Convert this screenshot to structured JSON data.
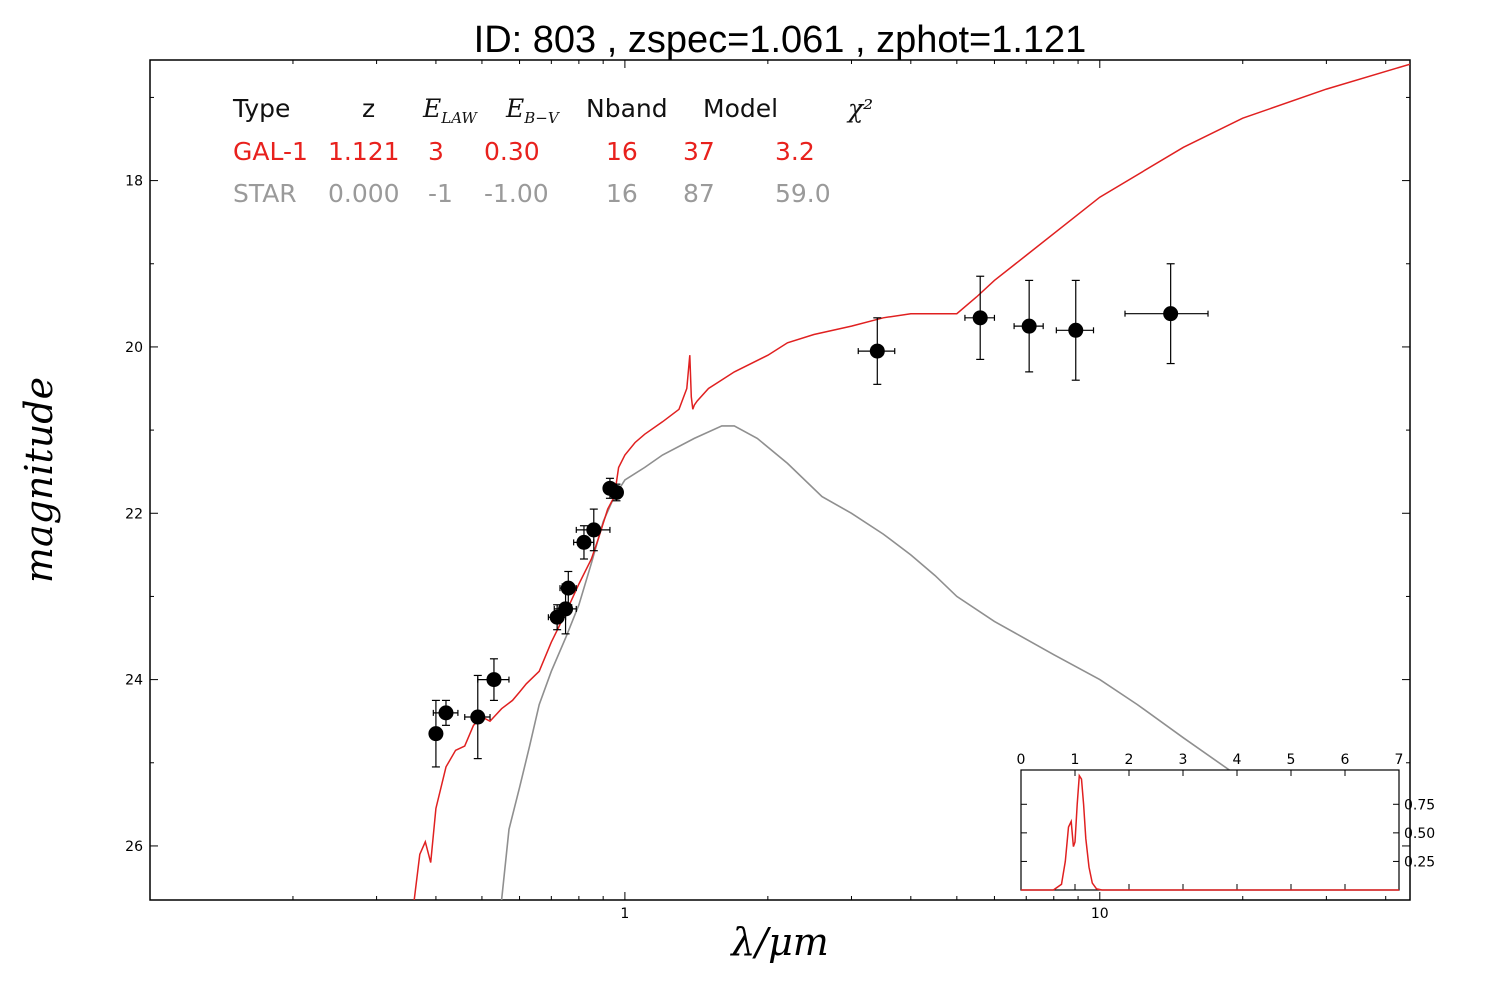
{
  "chart_data": {
    "type": "scatter",
    "title": "ID:  803   , zspec=1.061 , zphot=1.121",
    "xlabel": "λ/μm",
    "ylabel": "magnitude",
    "xscale": "log",
    "xlim": [
      0.1,
      45
    ],
    "ylim": [
      26.65,
      16.55
    ],
    "x_ticks": [
      {
        "value": 1,
        "label": "1"
      },
      {
        "value": 10,
        "label": "10"
      }
    ],
    "y_ticks": [
      {
        "value": 18,
        "label": "18"
      },
      {
        "value": 20,
        "label": "20"
      },
      {
        "value": 22,
        "label": "22"
      },
      {
        "value": 24,
        "label": "24"
      },
      {
        "value": 26,
        "label": "26"
      }
    ],
    "grid": false,
    "legend_table": {
      "headers": [
        "Type",
        "z",
        "E_LAW",
        "E_B-V",
        "Nband",
        "Model",
        "χ²"
      ],
      "rows": [
        {
          "cells": [
            "GAL-1",
            "1.121",
            "3",
            "0.30",
            "16",
            "37",
            "3.2"
          ],
          "color": "#e8211d"
        },
        {
          "cells": [
            "STAR",
            "0.000",
            "-1",
            "-1.00",
            "16",
            "87",
            "59.0"
          ],
          "color": "#9a9a9a"
        }
      ]
    },
    "series": [
      {
        "kind": "model",
        "color": "#e02020",
        "x": [
          0.36,
          0.37,
          0.38,
          0.39,
          0.4,
          0.42,
          0.44,
          0.46,
          0.48,
          0.5,
          0.52,
          0.55,
          0.58,
          0.6,
          0.62,
          0.66,
          0.7,
          0.75,
          0.8,
          0.85,
          0.88,
          0.92,
          0.95,
          0.97,
          1.0,
          1.05,
          1.1,
          1.2,
          1.3,
          1.35,
          1.37,
          1.38,
          1.39,
          1.4,
          1.42,
          1.5,
          1.7,
          2.0,
          2.2,
          2.5,
          3.0,
          3.5,
          4.0,
          5.0,
          5.5,
          6.0,
          7.0,
          10.0,
          15.0,
          20.0,
          30.0,
          45.0
        ],
        "y": [
          26.65,
          26.1,
          25.95,
          26.2,
          25.55,
          25.05,
          24.85,
          24.8,
          24.55,
          24.45,
          24.5,
          24.35,
          24.25,
          24.15,
          24.05,
          23.9,
          23.55,
          23.2,
          22.85,
          22.55,
          22.3,
          21.95,
          21.8,
          21.45,
          21.3,
          21.15,
          21.05,
          20.9,
          20.75,
          20.5,
          20.1,
          20.6,
          20.75,
          20.7,
          20.65,
          20.5,
          20.3,
          20.1,
          19.95,
          19.85,
          19.75,
          19.65,
          19.6,
          19.6,
          19.4,
          19.2,
          18.9,
          18.2,
          17.6,
          17.25,
          16.9,
          16.6
        ]
      },
      {
        "kind": "star-model",
        "color": "#8f8f8f",
        "x": [
          0.55,
          0.57,
          0.6,
          0.63,
          0.66,
          0.7,
          0.75,
          0.8,
          0.85,
          0.9,
          0.95,
          1.0,
          1.1,
          1.2,
          1.4,
          1.6,
          1.7,
          1.9,
          2.2,
          2.6,
          3.0,
          3.5,
          4.0,
          4.5,
          5.0,
          6.0,
          8.0,
          10.0,
          12.0,
          15.0,
          20.0
        ],
        "y": [
          26.65,
          25.8,
          25.3,
          24.8,
          24.3,
          23.9,
          23.5,
          23.1,
          22.6,
          22.1,
          21.8,
          21.6,
          21.45,
          21.3,
          21.1,
          20.95,
          20.95,
          21.1,
          21.4,
          21.8,
          22.0,
          22.25,
          22.5,
          22.75,
          23.0,
          23.3,
          23.7,
          24.0,
          24.3,
          24.7,
          25.2
        ]
      }
    ],
    "points": [
      {
        "x": 0.4,
        "y": 24.65,
        "xerr": 0.01,
        "yerr": 0.4
      },
      {
        "x": 0.42,
        "y": 24.4,
        "xerr": 0.025,
        "yerr": 0.15
      },
      {
        "x": 0.49,
        "y": 24.45,
        "xerr": 0.03,
        "yerr": 0.5
      },
      {
        "x": 0.53,
        "y": 24.0,
        "xerr": 0.04,
        "yerr": 0.25
      },
      {
        "x": 0.72,
        "y": 23.25,
        "xerr": 0.03,
        "yerr": 0.15
      },
      {
        "x": 0.75,
        "y": 23.15,
        "xerr": 0.04,
        "yerr": 0.3
      },
      {
        "x": 0.76,
        "y": 22.9,
        "xerr": 0.03,
        "yerr": 0.2
      },
      {
        "x": 0.82,
        "y": 22.35,
        "xerr": 0.04,
        "yerr": 0.2
      },
      {
        "x": 0.86,
        "y": 22.2,
        "xerr": 0.07,
        "yerr": 0.25
      },
      {
        "x": 0.93,
        "y": 21.7,
        "xerr": 0.02,
        "yerr": 0.12
      },
      {
        "x": 0.96,
        "y": 21.75,
        "xerr": 0.02,
        "yerr": 0.1
      },
      {
        "x": 3.4,
        "y": 20.05,
        "xerr": 0.3,
        "yerr": 0.4
      },
      {
        "x": 5.6,
        "y": 19.65,
        "xerr": 0.4,
        "yerr": 0.5
      },
      {
        "x": 7.1,
        "y": 19.75,
        "xerr": 0.5,
        "yerr": 0.55
      },
      {
        "x": 8.9,
        "y": 19.8,
        "xerr": 0.8,
        "yerr": 0.6
      },
      {
        "x": 14.1,
        "y": 19.6,
        "xerr": 2.8,
        "yerr": 0.6
      }
    ],
    "inset": {
      "type": "line",
      "xlim": [
        0,
        7
      ],
      "ylim": [
        0,
        1.05
      ],
      "x_ticks": [
        "0",
        "1",
        "2",
        "3",
        "4",
        "5",
        "6",
        "7"
      ],
      "y_ticks": [
        {
          "value": 0.25,
          "label": "0.25"
        },
        {
          "value": 0.5,
          "label": "0.50"
        },
        {
          "value": 0.75,
          "label": "0.75"
        }
      ],
      "color": "#e02020",
      "x": [
        0.0,
        0.6,
        0.75,
        0.82,
        0.88,
        0.93,
        0.97,
        1.0,
        1.04,
        1.08,
        1.12,
        1.16,
        1.2,
        1.26,
        1.32,
        1.4,
        1.5,
        7.0
      ],
      "y": [
        0.0,
        0.0,
        0.05,
        0.25,
        0.55,
        0.6,
        0.38,
        0.42,
        0.75,
        1.0,
        0.97,
        0.75,
        0.45,
        0.2,
        0.06,
        0.01,
        0.0,
        0.0
      ]
    }
  }
}
